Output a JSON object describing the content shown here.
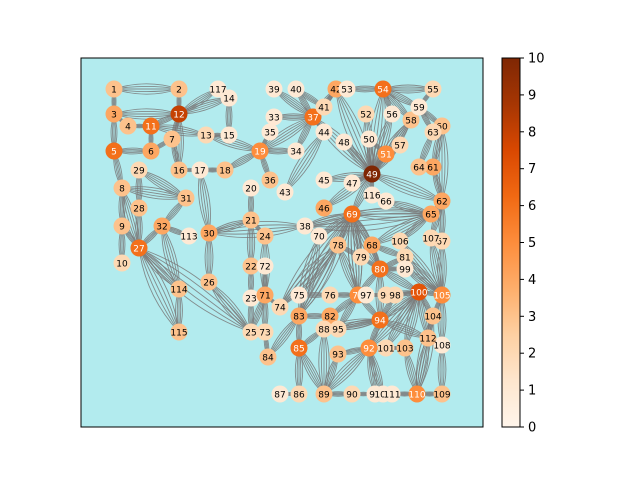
{
  "colorbar": {
    "min": 0,
    "max": 10,
    "ticks": [
      "0",
      "1",
      "2",
      "3",
      "4",
      "5",
      "6",
      "7",
      "8",
      "9",
      "10"
    ],
    "colormap": "Oranges"
  },
  "colors": {
    "plot_background": "#b2ebee",
    "edge": "#7a7a7a",
    "frame": "#000000"
  },
  "graph": {
    "nodes": [
      {
        "id": "1",
        "value": 3
      },
      {
        "id": "2",
        "value": 3
      },
      {
        "id": "3",
        "value": 4
      },
      {
        "id": "4",
        "value": 3
      },
      {
        "id": "5",
        "value": 6
      },
      {
        "id": "6",
        "value": 4
      },
      {
        "id": "7",
        "value": 3
      },
      {
        "id": "8",
        "value": 3
      },
      {
        "id": "9",
        "value": 3
      },
      {
        "id": "10",
        "value": 2
      },
      {
        "id": "11",
        "value": 6
      },
      {
        "id": "12",
        "value": 8
      },
      {
        "id": "13",
        "value": 2
      },
      {
        "id": "14",
        "value": 1
      },
      {
        "id": "15",
        "value": 1
      },
      {
        "id": "16",
        "value": 3
      },
      {
        "id": "17",
        "value": 1
      },
      {
        "id": "18",
        "value": 3
      },
      {
        "id": "19",
        "value": 5
      },
      {
        "id": "20",
        "value": 1
      },
      {
        "id": "21",
        "value": 3
      },
      {
        "id": "22",
        "value": 3
      },
      {
        "id": "23",
        "value": 1
      },
      {
        "id": "24",
        "value": 3
      },
      {
        "id": "25",
        "value": 2
      },
      {
        "id": "26",
        "value": 3
      },
      {
        "id": "27",
        "value": 6
      },
      {
        "id": "28",
        "value": 3
      },
      {
        "id": "29",
        "value": 2
      },
      {
        "id": "30",
        "value": 4
      },
      {
        "id": "31",
        "value": 3
      },
      {
        "id": "32",
        "value": 4
      },
      {
        "id": "33",
        "value": 1
      },
      {
        "id": "34",
        "value": 1
      },
      {
        "id": "35",
        "value": 1
      },
      {
        "id": "36",
        "value": 3
      },
      {
        "id": "37",
        "value": 6
      },
      {
        "id": "38",
        "value": 1
      },
      {
        "id": "39",
        "value": 1
      },
      {
        "id": "40",
        "value": 1
      },
      {
        "id": "41",
        "value": 2
      },
      {
        "id": "42",
        "value": 4
      },
      {
        "id": "43",
        "value": 1
      },
      {
        "id": "44",
        "value": 1
      },
      {
        "id": "45",
        "value": 1
      },
      {
        "id": "46",
        "value": 4
      },
      {
        "id": "47",
        "value": 1
      },
      {
        "id": "48",
        "value": 1
      },
      {
        "id": "49",
        "value": 10
      },
      {
        "id": "50",
        "value": 1
      },
      {
        "id": "51",
        "value": 5
      },
      {
        "id": "52",
        "value": 2
      },
      {
        "id": "53",
        "value": 1
      },
      {
        "id": "54",
        "value": 6
      },
      {
        "id": "55",
        "value": 2
      },
      {
        "id": "56",
        "value": 1
      },
      {
        "id": "57",
        "value": 2
      },
      {
        "id": "58",
        "value": 3
      },
      {
        "id": "59",
        "value": 1
      },
      {
        "id": "60",
        "value": 3
      },
      {
        "id": "61",
        "value": 4
      },
      {
        "id": "62",
        "value": 4
      },
      {
        "id": "63",
        "value": 2
      },
      {
        "id": "64",
        "value": 3
      },
      {
        "id": "65",
        "value": 4
      },
      {
        "id": "66",
        "value": 1
      },
      {
        "id": "67",
        "value": 2
      },
      {
        "id": "68",
        "value": 4
      },
      {
        "id": "69",
        "value": 6
      },
      {
        "id": "70",
        "value": 1
      },
      {
        "id": "71",
        "value": 4
      },
      {
        "id": "72",
        "value": 1
      },
      {
        "id": "73",
        "value": 2
      },
      {
        "id": "74",
        "value": 2
      },
      {
        "id": "75",
        "value": 1
      },
      {
        "id": "76",
        "value": 2
      },
      {
        "id": "77",
        "value": 5
      },
      {
        "id": "78",
        "value": 3
      },
      {
        "id": "79",
        "value": 2
      },
      {
        "id": "80",
        "value": 6
      },
      {
        "id": "81",
        "value": 2
      },
      {
        "id": "82",
        "value": 4
      },
      {
        "id": "83",
        "value": 4
      },
      {
        "id": "84",
        "value": 3
      },
      {
        "id": "85",
        "value": 6
      },
      {
        "id": "86",
        "value": 2
      },
      {
        "id": "87",
        "value": 1
      },
      {
        "id": "88",
        "value": 2
      },
      {
        "id": "89",
        "value": 3
      },
      {
        "id": "90",
        "value": 2
      },
      {
        "id": "91",
        "value": 1
      },
      {
        "id": "92",
        "value": 5
      },
      {
        "id": "93",
        "value": 3
      },
      {
        "id": "94",
        "value": 6
      },
      {
        "id": "95",
        "value": 2
      },
      {
        "id": "96",
        "value": 2
      },
      {
        "id": "97",
        "value": 1
      },
      {
        "id": "98",
        "value": 2
      },
      {
        "id": "99",
        "value": 1
      },
      {
        "id": "100",
        "value": 7
      },
      {
        "id": "101",
        "value": 2
      },
      {
        "id": "102",
        "value": 1
      },
      {
        "id": "103",
        "value": 3
      },
      {
        "id": "104",
        "value": 3
      },
      {
        "id": "105",
        "value": 5
      },
      {
        "id": "106",
        "value": 2
      },
      {
        "id": "107",
        "value": 2
      },
      {
        "id": "108",
        "value": 1
      },
      {
        "id": "109",
        "value": 3
      },
      {
        "id": "110",
        "value": 5
      },
      {
        "id": "111",
        "value": 1
      },
      {
        "id": "112",
        "value": 3
      },
      {
        "id": "113",
        "value": 1
      },
      {
        "id": "114",
        "value": 3
      },
      {
        "id": "115",
        "value": 3
      },
      {
        "id": "116",
        "value": 1
      },
      {
        "id": "117",
        "value": 1
      }
    ],
    "edges": [
      [
        "1",
        "2"
      ],
      [
        "1",
        "3"
      ],
      [
        "3",
        "12"
      ],
      [
        "2",
        "12"
      ],
      [
        "3",
        "4"
      ],
      [
        "3",
        "5"
      ],
      [
        "4",
        "11"
      ],
      [
        "11",
        "12"
      ],
      [
        "12",
        "117"
      ],
      [
        "12",
        "14"
      ],
      [
        "12",
        "7"
      ],
      [
        "12",
        "16"
      ],
      [
        "11",
        "6"
      ],
      [
        "11",
        "13"
      ],
      [
        "5",
        "6"
      ],
      [
        "6",
        "7"
      ],
      [
        "7",
        "16"
      ],
      [
        "5",
        "8"
      ],
      [
        "8",
        "9"
      ],
      [
        "9",
        "10"
      ],
      [
        "9",
        "27"
      ],
      [
        "8",
        "27"
      ],
      [
        "8",
        "31"
      ],
      [
        "29",
        "28"
      ],
      [
        "28",
        "27"
      ],
      [
        "29",
        "31"
      ],
      [
        "31",
        "32"
      ],
      [
        "32",
        "27"
      ],
      [
        "27",
        "114"
      ],
      [
        "27",
        "115"
      ],
      [
        "27",
        "25"
      ],
      [
        "32",
        "113"
      ],
      [
        "32",
        "114"
      ],
      [
        "114",
        "115"
      ],
      [
        "30",
        "26"
      ],
      [
        "26",
        "25"
      ],
      [
        "30",
        "17"
      ],
      [
        "17",
        "16"
      ],
      [
        "17",
        "18"
      ],
      [
        "18",
        "19"
      ],
      [
        "19",
        "13"
      ],
      [
        "13",
        "15"
      ],
      [
        "15",
        "14"
      ],
      [
        "14",
        "117"
      ],
      [
        "19",
        "34"
      ],
      [
        "19",
        "36"
      ],
      [
        "19",
        "37"
      ],
      [
        "19",
        "35"
      ],
      [
        "33",
        "37"
      ],
      [
        "39",
        "37"
      ],
      [
        "40",
        "37"
      ],
      [
        "40",
        "41"
      ],
      [
        "41",
        "37"
      ],
      [
        "42",
        "37"
      ],
      [
        "42",
        "53"
      ],
      [
        "42",
        "41"
      ],
      [
        "44",
        "37"
      ],
      [
        "44",
        "43"
      ],
      [
        "34",
        "37"
      ],
      [
        "20",
        "21"
      ],
      [
        "21",
        "24"
      ],
      [
        "21",
        "22"
      ],
      [
        "22",
        "23"
      ],
      [
        "23",
        "25"
      ],
      [
        "21",
        "30"
      ],
      [
        "30",
        "38"
      ],
      [
        "38",
        "65"
      ],
      [
        "38",
        "69"
      ],
      [
        "38",
        "70"
      ],
      [
        "24",
        "71"
      ],
      [
        "72",
        "71"
      ],
      [
        "71",
        "73"
      ],
      [
        "71",
        "74"
      ],
      [
        "71",
        "25"
      ],
      [
        "74",
        "69"
      ],
      [
        "74",
        "78"
      ],
      [
        "70",
        "83"
      ],
      [
        "69",
        "49"
      ],
      [
        "49",
        "46"
      ],
      [
        "49",
        "45"
      ],
      [
        "49",
        "47"
      ],
      [
        "49",
        "48"
      ],
      [
        "49",
        "50"
      ],
      [
        "49",
        "51"
      ],
      [
        "49",
        "52"
      ],
      [
        "49",
        "54"
      ],
      [
        "49",
        "42"
      ],
      [
        "49",
        "37"
      ],
      [
        "49",
        "56"
      ],
      [
        "49",
        "57"
      ],
      [
        "49",
        "58"
      ],
      [
        "49",
        "62"
      ],
      [
        "49",
        "116"
      ],
      [
        "51",
        "58"
      ],
      [
        "51",
        "57"
      ],
      [
        "51",
        "50"
      ],
      [
        "54",
        "53"
      ],
      [
        "54",
        "55"
      ],
      [
        "54",
        "59"
      ],
      [
        "54",
        "56"
      ],
      [
        "54",
        "58"
      ],
      [
        "55",
        "59"
      ],
      [
        "59",
        "63"
      ],
      [
        "59",
        "60"
      ],
      [
        "60",
        "61"
      ],
      [
        "60",
        "62"
      ],
      [
        "61",
        "64"
      ],
      [
        "63",
        "64"
      ],
      [
        "61",
        "62"
      ],
      [
        "62",
        "65"
      ],
      [
        "62",
        "67"
      ],
      [
        "62",
        "107"
      ],
      [
        "65",
        "66"
      ],
      [
        "66",
        "116"
      ],
      [
        "65",
        "68"
      ],
      [
        "65",
        "69"
      ],
      [
        "65",
        "106"
      ],
      [
        "68",
        "69"
      ],
      [
        "68",
        "79"
      ],
      [
        "68",
        "80"
      ],
      [
        "68",
        "81"
      ],
      [
        "69",
        "78"
      ],
      [
        "69",
        "79"
      ],
      [
        "69",
        "80"
      ],
      [
        "69",
        "77"
      ],
      [
        "78",
        "77"
      ],
      [
        "78",
        "79"
      ],
      [
        "79",
        "80"
      ],
      [
        "80",
        "81"
      ],
      [
        "80",
        "99"
      ],
      [
        "80",
        "100"
      ],
      [
        "80",
        "77"
      ],
      [
        "80",
        "94"
      ],
      [
        "81",
        "105"
      ],
      [
        "99",
        "105"
      ],
      [
        "106",
        "105"
      ],
      [
        "107",
        "105"
      ],
      [
        "67",
        "105"
      ],
      [
        "100",
        "105"
      ],
      [
        "105",
        "104"
      ],
      [
        "105",
        "108"
      ],
      [
        "104",
        "112"
      ],
      [
        "108",
        "109"
      ],
      [
        "112",
        "110"
      ],
      [
        "100",
        "104"
      ],
      [
        "100",
        "103"
      ],
      [
        "100",
        "101"
      ],
      [
        "100",
        "92"
      ],
      [
        "100",
        "98"
      ],
      [
        "100",
        "96"
      ],
      [
        "98",
        "96"
      ],
      [
        "96",
        "97"
      ],
      [
        "97",
        "77"
      ],
      [
        "77",
        "76"
      ],
      [
        "76",
        "75"
      ],
      [
        "77",
        "82"
      ],
      [
        "77",
        "95"
      ],
      [
        "82",
        "83"
      ],
      [
        "82",
        "88"
      ],
      [
        "82",
        "95"
      ],
      [
        "83",
        "85"
      ],
      [
        "83",
        "84"
      ],
      [
        "84",
        "73"
      ],
      [
        "85",
        "86"
      ],
      [
        "85",
        "89"
      ],
      [
        "85",
        "88"
      ],
      [
        "86",
        "87"
      ],
      [
        "88",
        "89"
      ],
      [
        "89",
        "90"
      ],
      [
        "90",
        "91"
      ],
      [
        "91",
        "102"
      ],
      [
        "102",
        "111"
      ],
      [
        "111",
        "110"
      ],
      [
        "110",
        "109"
      ],
      [
        "89",
        "93"
      ],
      [
        "93",
        "92"
      ],
      [
        "92",
        "94"
      ],
      [
        "94",
        "95"
      ],
      [
        "94",
        "88"
      ],
      [
        "92",
        "101"
      ],
      [
        "101",
        "103"
      ],
      [
        "103",
        "110"
      ],
      [
        "92",
        "102"
      ],
      [
        "92",
        "91"
      ],
      [
        "94",
        "98"
      ],
      [
        "94",
        "100"
      ],
      [
        "77",
        "94"
      ],
      [
        "89",
        "92"
      ],
      [
        "118",
        "83"
      ],
      [
        "118",
        "69"
      ],
      [
        "83",
        "69"
      ],
      [
        "70",
        "69"
      ],
      [
        "78",
        "83"
      ],
      [
        "77",
        "69"
      ],
      [
        "94",
        "112"
      ],
      [
        "100",
        "112"
      ],
      [
        "110",
        "104"
      ]
    ]
  }
}
